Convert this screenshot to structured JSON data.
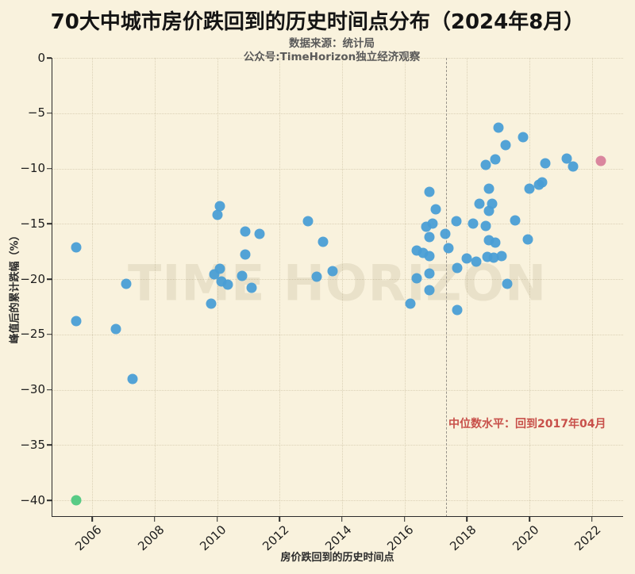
{
  "header": {
    "title": "70大中城市房价跌回到的历史时间点分布（2024年8月）",
    "subtitle_source": "数据来源：统计局",
    "subtitle_wechat": "公众号:TimeHorizon独立经济观察"
  },
  "watermark_text": "TIME HORIZON",
  "annotation": {
    "text": "中位数水平：回到2017年04月",
    "color": "#c8504a"
  },
  "chart_data": {
    "type": "scatter",
    "title": "70大中城市房价跌回到的历史时间点分布（2024年8月）",
    "xlabel": "房价跌回到的历史时间点",
    "ylabel": "峰值后的累计跌幅（%）",
    "xlim": [
      2004.7,
      2023.0
    ],
    "ylim": [
      -41.5,
      0
    ],
    "xticks": [
      2006,
      2008,
      2010,
      2012,
      2014,
      2016,
      2018,
      2020,
      2022
    ],
    "xtick_labels": [
      "2006",
      "2008",
      "2010",
      "2012",
      "2014",
      "2016",
      "2018",
      "2020",
      "2022"
    ],
    "yticks": [
      0,
      -5,
      -10,
      -15,
      -20,
      -25,
      -30,
      -35,
      -40
    ],
    "ytick_labels": [
      "0",
      "−5",
      "−10",
      "−15",
      "−20",
      "−25",
      "−30",
      "−35",
      "−40"
    ],
    "grid": true,
    "legend": "none",
    "median_line_x": 2017.33,
    "series": [
      {
        "name": "cities",
        "color": "#4a9ed5",
        "points": [
          [
            2005.5,
            -17.1
          ],
          [
            2005.5,
            -23.8
          ],
          [
            2006.75,
            -24.5
          ],
          [
            2007.1,
            -20.4
          ],
          [
            2007.3,
            -29.0
          ],
          [
            2009.8,
            -22.2
          ],
          [
            2009.9,
            -19.6
          ],
          [
            2010.0,
            -14.2
          ],
          [
            2010.1,
            -13.4
          ],
          [
            2010.1,
            -19.1
          ],
          [
            2010.15,
            -20.2
          ],
          [
            2010.35,
            -20.5
          ],
          [
            2010.8,
            -19.7
          ],
          [
            2010.9,
            -15.7
          ],
          [
            2010.9,
            -17.8
          ],
          [
            2011.1,
            -20.8
          ],
          [
            2011.35,
            -15.9
          ],
          [
            2012.9,
            -14.8
          ],
          [
            2013.2,
            -19.8
          ],
          [
            2013.4,
            -16.6
          ],
          [
            2013.7,
            -19.3
          ],
          [
            2016.2,
            -22.2
          ],
          [
            2016.4,
            -17.4
          ],
          [
            2016.4,
            -19.9
          ],
          [
            2016.6,
            -17.6
          ],
          [
            2016.7,
            -15.3
          ],
          [
            2016.8,
            -12.1
          ],
          [
            2016.8,
            -16.2
          ],
          [
            2016.8,
            -17.9
          ],
          [
            2016.8,
            -19.5
          ],
          [
            2016.8,
            -21.0
          ],
          [
            2016.9,
            -15.0
          ],
          [
            2017.0,
            -13.7
          ],
          [
            2017.3,
            -15.9
          ],
          [
            2017.4,
            -17.2
          ],
          [
            2017.65,
            -14.8
          ],
          [
            2017.7,
            -19.0
          ],
          [
            2017.7,
            -22.8
          ],
          [
            2018.0,
            -18.1
          ],
          [
            2018.2,
            -15.0
          ],
          [
            2018.3,
            -18.4
          ],
          [
            2018.4,
            -13.2
          ],
          [
            2018.6,
            -9.7
          ],
          [
            2018.6,
            -15.2
          ],
          [
            2018.65,
            -18.0
          ],
          [
            2018.7,
            -11.8
          ],
          [
            2018.7,
            -13.8
          ],
          [
            2018.7,
            -16.5
          ],
          [
            2018.8,
            -13.2
          ],
          [
            2018.85,
            -18.05
          ],
          [
            2018.9,
            -9.2
          ],
          [
            2018.9,
            -16.7
          ],
          [
            2019.0,
            -6.3
          ],
          [
            2019.1,
            -17.9
          ],
          [
            2019.25,
            -7.9
          ],
          [
            2019.3,
            -20.4
          ],
          [
            2019.55,
            -14.7
          ],
          [
            2019.8,
            -7.2
          ],
          [
            2019.95,
            -16.4
          ],
          [
            2020.0,
            -11.8
          ],
          [
            2020.3,
            -11.45
          ],
          [
            2020.4,
            -11.26
          ],
          [
            2020.5,
            -9.5
          ],
          [
            2021.2,
            -9.1
          ],
          [
            2021.4,
            -9.8
          ]
        ]
      },
      {
        "name": "earliest-city",
        "color": "#4fc880",
        "points": [
          [
            2005.5,
            -40.0
          ]
        ]
      },
      {
        "name": "latest-city",
        "color": "#d87f9a",
        "points": [
          [
            2022.3,
            -9.3
          ]
        ]
      }
    ]
  },
  "colors": {
    "background": "#f9f2dd",
    "dot_blue": "#4a9ed5",
    "dot_green": "#4fc880",
    "dot_pink": "#d87f9a",
    "annotation_red": "#c8504a",
    "median_line_gray": "#98938a"
  }
}
